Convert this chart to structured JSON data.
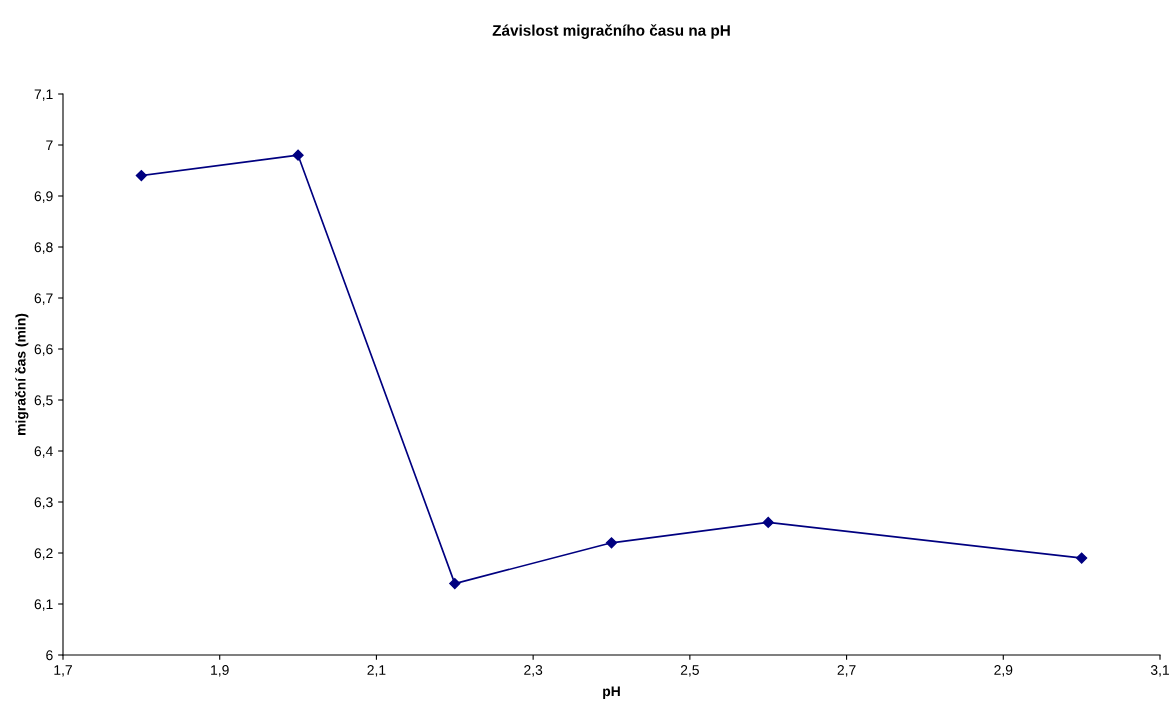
{
  "chart_data": {
    "type": "line",
    "title": "Závislost migračního času na pH",
    "xlabel": "pH",
    "ylabel": "migrační čas (min)",
    "x": [
      1.8,
      2.0,
      2.2,
      2.4,
      2.6,
      3.0
    ],
    "series": [
      {
        "color": "#000080",
        "values": [
          6.94,
          6.98,
          6.14,
          6.22,
          6.26,
          6.19
        ]
      }
    ],
    "xlim": [
      1.7,
      3.1
    ],
    "xticks": [
      {
        "value": 1.7,
        "label": "1,7"
      },
      {
        "value": 1.9,
        "label": "1,9"
      },
      {
        "value": 2.1,
        "label": "2,1"
      },
      {
        "value": 2.3,
        "label": "2,3"
      },
      {
        "value": 2.5,
        "label": "2,5"
      },
      {
        "value": 2.7,
        "label": "2,7"
      },
      {
        "value": 2.9,
        "label": "2,9"
      },
      {
        "value": 3.1,
        "label": "3,1"
      }
    ],
    "ylim": [
      6,
      7.1
    ],
    "yticks": [
      6,
      {
        "value": 6.1,
        "label": "6,1"
      },
      {
        "value": 6.2,
        "label": "6,2"
      },
      {
        "value": 6.3,
        "label": "6,3"
      },
      {
        "value": 6.4,
        "label": "6,4"
      },
      {
        "value": 6.5,
        "label": "6,5"
      },
      {
        "value": 6.6,
        "label": "6,6"
      },
      {
        "value": 6.7,
        "label": "6,7"
      },
      {
        "value": 6.8,
        "label": "6,8"
      },
      {
        "value": 6.9,
        "label": "6,9"
      },
      7,
      {
        "value": 7.1,
        "label": "7,1"
      }
    ],
    "marker": "diamond",
    "line_style": "solid",
    "grid": false,
    "legend": false
  }
}
